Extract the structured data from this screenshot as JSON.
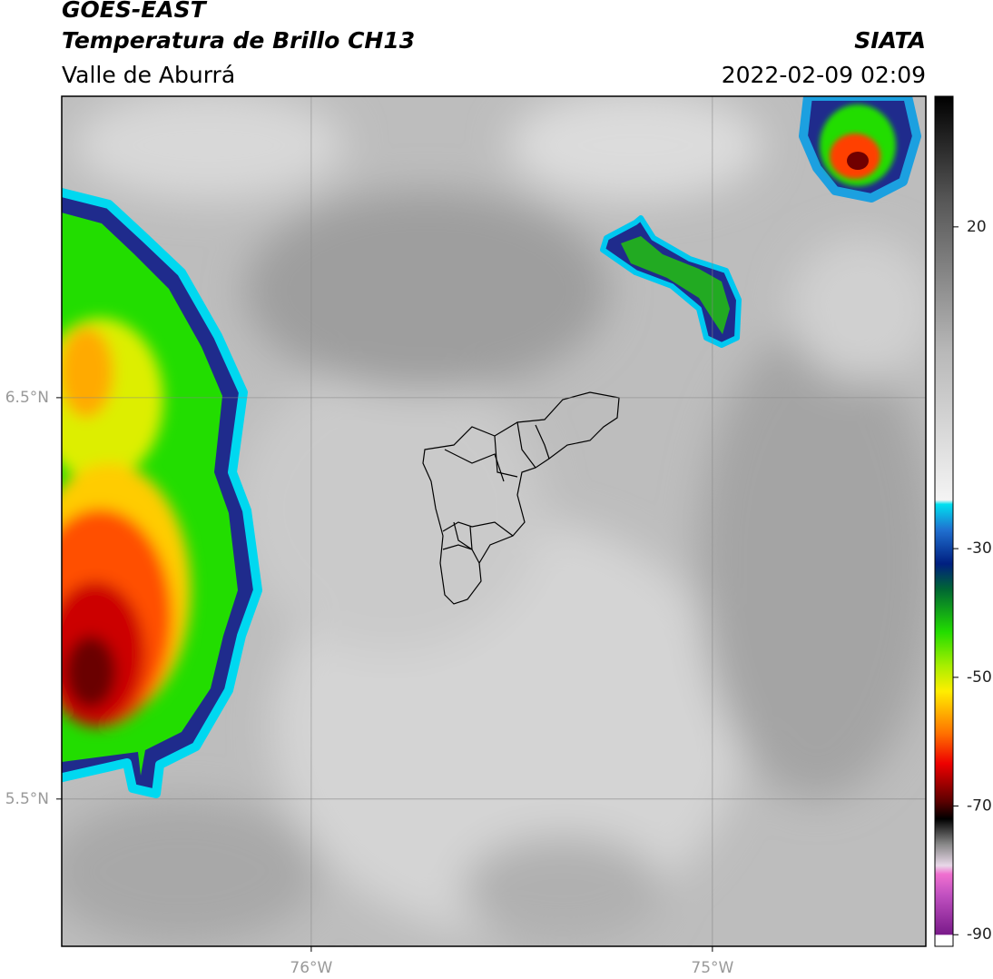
{
  "header": {
    "title": "GOES-EAST",
    "product": "Temperatura de Brillo CH13",
    "region": "Valle de Aburrá",
    "source": "SIATA",
    "datetime": "2022-02-09 02:09"
  },
  "map": {
    "xlim": [
      -76.622,
      -74.468
    ],
    "ylim": [
      5.133,
      7.251
    ],
    "xticks": [
      {
        "value": -76,
        "label": "76°W"
      },
      {
        "value": -75,
        "label": "75°W"
      }
    ],
    "yticks": [
      {
        "value": 6.5,
        "label": "6.5°N"
      },
      {
        "value": 5.5,
        "label": "5.5°N"
      }
    ],
    "grid": true
  },
  "colorbar": {
    "clim": [
      -91.8,
      40.3
    ],
    "ticks": [
      20,
      -30,
      -50,
      -70,
      -90
    ]
  }
}
